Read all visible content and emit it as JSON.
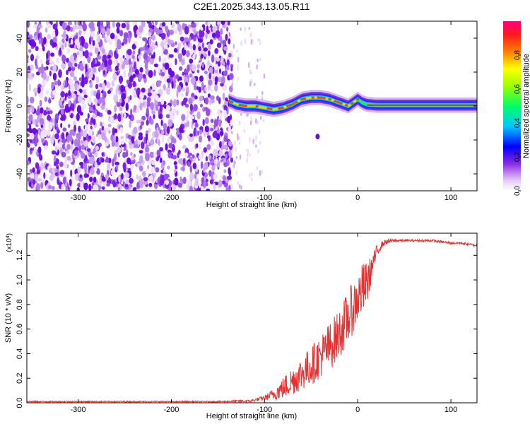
{
  "title": "C2E1.2025.343.13.05.R11",
  "chart_data": [
    {
      "type": "heatmap",
      "title": "C2E1.2025.343.13.05.R11",
      "xlabel": "Height of straight line (km)",
      "ylabel": "Frequency (Hz)",
      "xlim": [
        -355,
        128
      ],
      "ylim": [
        -50,
        50
      ],
      "x_ticks": [
        -300,
        -200,
        -100,
        0,
        100
      ],
      "y_ticks": [
        -40,
        -20,
        0,
        20,
        40
      ],
      "noise_region_x": [
        -355,
        -135
      ],
      "sparse_region_x": [
        -135,
        -100
      ],
      "isolated_blob": {
        "x": -43,
        "y": -18
      },
      "signal_ridge": {
        "x": [
          -138,
          -130,
          -120,
          -110,
          -100,
          -90,
          -80,
          -70,
          -60,
          -50,
          -40,
          -30,
          -20,
          -15,
          -10,
          -5,
          0,
          5,
          10,
          20,
          40,
          60,
          80,
          100,
          128
        ],
        "y": [
          3,
          1,
          0,
          0,
          -1,
          -2,
          -1,
          1,
          4,
          5,
          5,
          4,
          2,
          1,
          0,
          2,
          4,
          2,
          1,
          0.5,
          0.5,
          0.5,
          0.5,
          0.5,
          0.5
        ]
      },
      "colorbar": {
        "label": "Normalized spectral amplitude",
        "range": [
          0,
          1
        ],
        "ticks": [
          "0.0",
          "0.2",
          "0.4",
          "0.6",
          "0.8"
        ],
        "colors": [
          "#ffffff",
          "#d9b8f5",
          "#8a2be2",
          "#0000ff",
          "#00ffff",
          "#00ff00",
          "#ffff00",
          "#ff8000",
          "#ff0000",
          "#ff0080"
        ]
      }
    },
    {
      "type": "line",
      "xlabel": "Height of straight line (km)",
      "ylabel": "SNR (10 * v/v)",
      "y_multiplier": "(x10",
      "y_multiplier_exp": "4",
      "y_multiplier_close": ")",
      "xlim": [
        -355,
        128
      ],
      "ylim": [
        0,
        1.38
      ],
      "x_ticks": [
        -300,
        -200,
        -100,
        0,
        100
      ],
      "y_ticks": [
        "0.0",
        "0.2",
        "0.4",
        "0.6",
        "0.8",
        "1.0",
        "1.2"
      ],
      "series": [
        {
          "name": "SNR",
          "color": "#e53030",
          "x": [
            -355,
            -300,
            -250,
            -200,
            -150,
            -115,
            -100,
            -90,
            -80,
            -70,
            -60,
            -50,
            -40,
            -30,
            -20,
            -10,
            0,
            5,
            10,
            15,
            20,
            25,
            30,
            40,
            50,
            60,
            70,
            80,
            90,
            100,
            110,
            128
          ],
          "y": [
            0.01,
            0.01,
            0.01,
            0.01,
            0.01,
            0.015,
            0.04,
            0.07,
            0.12,
            0.18,
            0.24,
            0.3,
            0.38,
            0.46,
            0.56,
            0.7,
            0.85,
            0.92,
            0.97,
            1.1,
            1.22,
            1.28,
            1.31,
            1.32,
            1.32,
            1.32,
            1.32,
            1.32,
            1.31,
            1.3,
            1.3,
            1.28
          ],
          "noise_amplitude": [
            0.005,
            0.005,
            0.005,
            0.005,
            0.005,
            0.01,
            0.02,
            0.05,
            0.09,
            0.12,
            0.14,
            0.16,
            0.18,
            0.2,
            0.2,
            0.22,
            0.2,
            0.22,
            0.18,
            0.1,
            0.06,
            0.03,
            0.02,
            0.015,
            0.01,
            0.01,
            0.01,
            0.01,
            0.01,
            0.01,
            0.01,
            0.01
          ]
        }
      ]
    }
  ]
}
